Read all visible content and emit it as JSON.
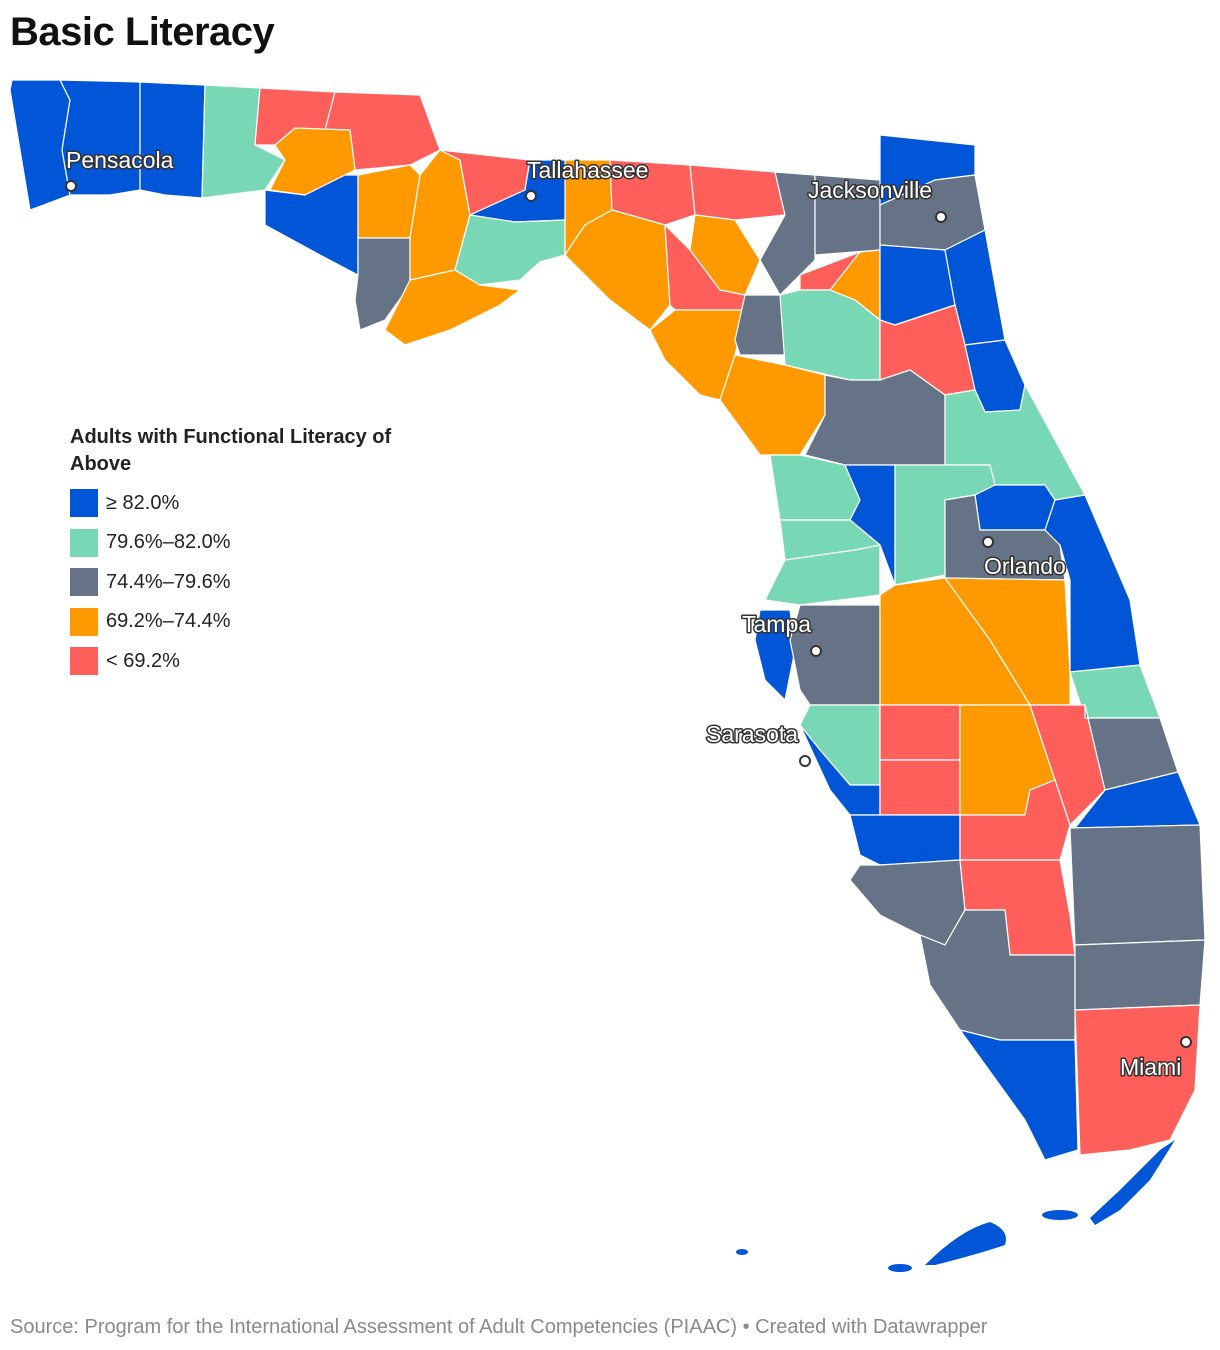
{
  "title": "Basic Literacy",
  "legend": {
    "title": "Adults with Functional Literacy of Above",
    "items": [
      {
        "label": "≥ 82.0%",
        "color": "#0056d6"
      },
      {
        "label": "79.6%–82.0%",
        "color": "#78d8b6"
      },
      {
        "label": "74.4%–79.6%",
        "color": "#667285"
      },
      {
        "label": "69.2%–74.4%",
        "color": "#ff9900"
      },
      {
        "label": "< 69.2%",
        "color": "#ff5f5a"
      }
    ]
  },
  "cities": [
    {
      "name": "Pensacola"
    },
    {
      "name": "Tallahassee"
    },
    {
      "name": "Jacksonville"
    },
    {
      "name": "Orlando"
    },
    {
      "name": "Tampa"
    },
    {
      "name": "Sarasota"
    },
    {
      "name": "Miami"
    }
  ],
  "colors": {
    "high": "#0056d6",
    "mid_high": "#78d8b6",
    "mid": "#667285",
    "mid_low": "#ff9900",
    "low": "#ff5f5a"
  },
  "footer": "Source: Program for the International Assessment of Adult Competencies (PIAAC) • Created with Datawrapper"
}
